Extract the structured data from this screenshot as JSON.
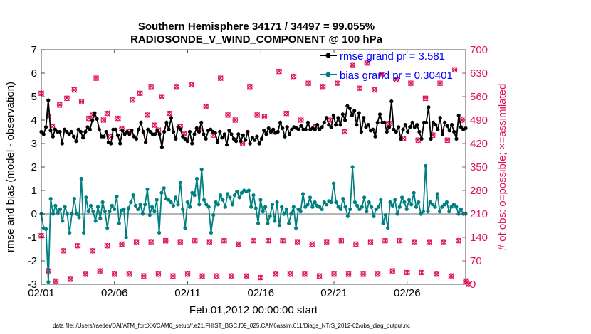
{
  "chart_data": {
    "type": "line",
    "title_line1": "Southern Hemisphere 34171 / 34497 = 99.055%",
    "title_line2": "RADIOSONDE_V_WIND_COMPONENT @ 100 hPa",
    "xlabel": "Feb.01,2012 00:00:00 start",
    "ylabel_left": "rmse and bias (model - observation)",
    "ylabel_right": "# of obs: o=possible; ×=assimilated",
    "footnote": "data file: /Users/raeder/DAI/ATM_forcXX/CAM6_setup/f.e21.FHIST_BGC.f09_025.CAM6assim.011/Diags_NTrS_2012-02/obs_diag_output.nc",
    "x_ticks": [
      "02/01",
      "02/06",
      "02/11",
      "02/16",
      "02/21",
      "02/26"
    ],
    "x_tick_days": [
      0,
      5,
      10,
      15,
      20,
      25
    ],
    "xlim_days": [
      0,
      29
    ],
    "ylim_left": [
      -3,
      7
    ],
    "y_ticks_left": [
      "-3",
      "-2",
      "-1",
      "0",
      "1",
      "2",
      "3",
      "4",
      "5",
      "6",
      "7"
    ],
    "ylim_right": [
      0,
      700
    ],
    "y_ticks_right": [
      "0",
      "70",
      "140",
      "210",
      "280",
      "350",
      "420",
      "490",
      "560",
      "630",
      "700"
    ],
    "colors": {
      "rmse": "#000000",
      "bias": "#008080",
      "obs": "#e0105a",
      "zero_line": "#b4b4b4",
      "legend_text": "#0000ff"
    },
    "legend": [
      {
        "name": "rmse",
        "label": "rmse grand pr = 3.581"
      },
      {
        "name": "bias",
        "label": "bias grand pr = 0.30401"
      }
    ],
    "series_rmse": [
      3.5,
      3.4,
      3.7,
      4.85,
      3.55,
      3.3,
      3.6,
      3.5,
      3.5,
      3.0,
      3.6,
      3.5,
      3.4,
      3.5,
      3.3,
      3.1,
      3.6,
      3.5,
      3.25,
      3.5,
      3.7,
      3.6,
      4.0,
      4.3,
      4.05,
      3.6,
      3.3,
      3.3,
      3.5,
      3.05,
      3.0,
      3.6,
      3.6,
      3.35,
      3.0,
      3.55,
      3.4,
      3.5,
      3.4,
      3.55,
      3.3,
      3.2,
      3.6,
      3.9,
      3.5,
      3.05,
      3.6,
      3.5,
      3.4,
      3.4,
      3.55,
      3.4,
      2.85,
      3.5,
      3.9,
      3.6,
      4.1,
      3.5,
      3.2,
      3.7,
      3.6,
      3.3,
      3.2,
      3.1,
      3.5,
      3.0,
      3.4,
      3.65,
      3.5,
      3.9,
      3.4,
      3.2,
      3.55,
      3.6,
      3.5,
      3.45,
      3.05,
      3.5,
      3.25,
      3.4,
      2.95,
      3.55,
      3.4,
      3.2,
      3.1,
      3.4,
      3.1,
      3.35,
      3.15,
      3.5,
      3.0,
      3.25,
      3.15,
      3.3,
      3.0,
      3.2,
      3.55,
      3.4,
      3.65,
      3.5,
      3.6,
      3.45,
      3.5,
      3.9,
      3.65,
      3.3,
      3.7,
      3.4,
      3.6,
      3.7,
      3.65,
      3.6,
      3.75,
      3.6,
      3.6,
      3.9,
      3.6,
      3.65,
      3.6,
      3.8,
      3.6,
      3.7,
      3.9,
      4.1,
      3.8,
      3.7,
      4.2,
      3.8,
      4.1,
      3.8,
      4.25,
      4.0,
      4.6,
      4.5,
      4.2,
      4.4,
      3.8,
      4.3,
      3.5,
      4.1,
      3.7,
      3.8,
      3.55,
      3.6,
      3.3,
      3.9,
      4.25,
      3.9,
      3.9,
      3.5,
      3.7,
      4.8,
      3.6,
      3.5,
      3.7,
      3.2,
      3.6,
      3.8,
      3.5,
      3.7,
      3.9,
      3.7,
      3.8,
      3.5,
      3.2,
      3.9,
      3.9,
      4.55,
      3.2,
      3.9,
      3.8,
      3.6,
      4.1,
      3.4,
      3.9,
      3.75,
      3.55,
      3.8,
      3.5,
      3.2,
      4.2,
      3.7,
      3.6,
      3.65
    ],
    "series_bias": [
      0.0,
      -0.6,
      -0.65,
      -2.9,
      0.65,
      0.0,
      0.35,
      0.05,
      0.2,
      -0.3,
      0.3,
      0.0,
      -0.8,
      0.0,
      0.65,
      0.0,
      -0.15,
      1.5,
      -0.8,
      0.7,
      0.1,
      0.35,
      0.1,
      -0.3,
      0.3,
      -0.2,
      0.5,
      0.1,
      -0.6,
      0.1,
      0.35,
      0.2,
      0.75,
      -0.4,
      0.15,
      0.2,
      -1.0,
      0.25,
      0.5,
      0.8,
      0.35,
      0.2,
      0.4,
      0.0,
      0.4,
      1.05,
      -0.05,
      0.3,
      0.1,
      0.6,
      -0.8,
      0.9,
      1.1,
      0.65,
      0.6,
      0.5,
      0.35,
      0.7,
      0.4,
      1.35,
      0.2,
      -0.6,
      0.5,
      0.3,
      0.9,
      0.8,
      1.5,
      0.4,
      1.9,
      0.6,
      0.4,
      0.3,
      -0.8,
      -0.05,
      0.5,
      0.4,
      0.8,
      0.6,
      0.3,
      0.85,
      0.7,
      0.4,
      0.8,
      0.95,
      0.7,
      0.9,
      1.0,
      0.95,
      1.0,
      0.3,
      0.8,
      0.25,
      -0.4,
      0.6,
      0.1,
      0.3,
      -0.4,
      -0.1,
      0.4,
      -0.3,
      0.5,
      -0.5,
      0.3,
      0.0,
      0.2,
      -0.4,
      0.0,
      0.3,
      -0.6,
      0.2,
      0.1,
      0.85,
      0.3,
      0.4,
      0.7,
      0.3,
      0.5,
      0.35,
      0.3,
      0.2,
      0.5,
      0.4,
      0.55,
      0.5,
      1.3,
      0.5,
      0.3,
      0.2,
      0.65,
      0.3,
      -0.1,
      0.2,
      2.0,
      0.5,
      0.35,
      0.2,
      0.3,
      0.7,
      0.1,
      0.5,
      0.3,
      -0.1,
      0.2,
      0.3,
      0.6,
      -0.4,
      -0.05,
      -0.6,
      0.5,
      0.35,
      0.6,
      0.0,
      0.3,
      0.7,
      0.5,
      0.2,
      0.6,
      0.4,
      0.9,
      0.3,
      0.5,
      0.0,
      0.1,
      2.05,
      0.1,
      0.5,
      0.4,
      0.3,
      0.85,
      0.1,
      0.3,
      0.4,
      0.5,
      0.1,
      0.3,
      0.4,
      0.3,
      0.0,
      0.2,
      0.0,
      0.0
    ],
    "series_obs_possible_upper": [
      [
        0.0,
        570
      ],
      [
        0.5,
        500
      ],
      [
        0.75,
        470
      ],
      [
        1.25,
        535
      ],
      [
        1.75,
        555
      ],
      [
        2.25,
        580
      ],
      [
        2.75,
        545
      ],
      [
        3.25,
        495
      ],
      [
        3.5,
        505
      ],
      [
        3.75,
        615
      ],
      [
        4.25,
        490
      ],
      [
        4.5,
        510
      ],
      [
        4.75,
        440
      ],
      [
        5.25,
        495
      ],
      [
        5.5,
        465
      ],
      [
        6.0,
        455
      ],
      [
        6.25,
        550
      ],
      [
        6.75,
        570
      ],
      [
        7.25,
        505
      ],
      [
        7.5,
        590
      ],
      [
        7.75,
        475
      ],
      [
        8.0,
        460
      ],
      [
        8.25,
        560
      ],
      [
        8.75,
        510
      ],
      [
        9.25,
        590
      ],
      [
        9.5,
        470
      ],
      [
        9.75,
        450
      ],
      [
        10.25,
        595
      ],
      [
        10.75,
        465
      ],
      [
        11.25,
        530
      ],
      [
        11.75,
        445
      ],
      [
        12.25,
        615
      ],
      [
        12.75,
        505
      ],
      [
        13.25,
        490
      ],
      [
        13.75,
        420
      ],
      [
        14.25,
        590
      ],
      [
        14.75,
        505
      ],
      [
        15.25,
        500
      ],
      [
        15.75,
        455
      ],
      [
        16.25,
        635
      ],
      [
        16.75,
        510
      ],
      [
        17.25,
        620
      ],
      [
        17.75,
        490
      ],
      [
        18.25,
        600
      ],
      [
        18.75,
        470
      ],
      [
        19.25,
        590
      ],
      [
        19.75,
        490
      ],
      [
        20.25,
        600
      ],
      [
        20.75,
        455
      ],
      [
        21.25,
        655
      ],
      [
        21.75,
        585
      ],
      [
        22.25,
        660
      ],
      [
        22.75,
        580
      ],
      [
        23.25,
        625
      ],
      [
        23.75,
        480
      ],
      [
        24.25,
        610
      ],
      [
        24.75,
        435
      ],
      [
        25.25,
        600
      ],
      [
        25.75,
        430
      ],
      [
        26.25,
        555
      ],
      [
        26.75,
        445
      ],
      [
        27.25,
        600
      ],
      [
        27.75,
        430
      ],
      [
        28.25,
        640
      ],
      [
        28.75,
        490
      ]
    ],
    "series_obs_possible_lower": [
      [
        0.0,
        145
      ],
      [
        0.5,
        40
      ],
      [
        1.0,
        10
      ],
      [
        1.5,
        100
      ],
      [
        2.0,
        15
      ],
      [
        2.5,
        115
      ],
      [
        3.0,
        30
      ],
      [
        3.5,
        100
      ],
      [
        4.0,
        40
      ],
      [
        4.5,
        115
      ],
      [
        5.0,
        30
      ],
      [
        5.5,
        120
      ],
      [
        6.0,
        30
      ],
      [
        6.5,
        125
      ],
      [
        7.0,
        25
      ],
      [
        7.5,
        125
      ],
      [
        8.0,
        30
      ],
      [
        8.5,
        130
      ],
      [
        9.0,
        25
      ],
      [
        9.5,
        125
      ],
      [
        10.0,
        30
      ],
      [
        10.5,
        130
      ],
      [
        11.0,
        25
      ],
      [
        11.5,
        125
      ],
      [
        12.0,
        25
      ],
      [
        12.5,
        130
      ],
      [
        13.0,
        25
      ],
      [
        13.5,
        120
      ],
      [
        14.0,
        25
      ],
      [
        14.5,
        130
      ],
      [
        15.0,
        20
      ],
      [
        15.5,
        130
      ],
      [
        16.0,
        30
      ],
      [
        16.5,
        130
      ],
      [
        17.0,
        30
      ],
      [
        17.5,
        125
      ],
      [
        18.0,
        30
      ],
      [
        18.5,
        120
      ],
      [
        19.0,
        25
      ],
      [
        19.5,
        125
      ],
      [
        20.0,
        30
      ],
      [
        20.5,
        130
      ],
      [
        21.0,
        30
      ],
      [
        21.5,
        120
      ],
      [
        22.0,
        30
      ],
      [
        22.5,
        125
      ],
      [
        23.0,
        30
      ],
      [
        23.5,
        130
      ],
      [
        24.0,
        40
      ],
      [
        24.5,
        130
      ],
      [
        25.0,
        35
      ],
      [
        25.5,
        125
      ],
      [
        26.0,
        35
      ],
      [
        26.5,
        125
      ],
      [
        27.0,
        30
      ],
      [
        27.5,
        125
      ],
      [
        28.0,
        25
      ],
      [
        28.5,
        130
      ],
      [
        29.0,
        10
      ],
      [
        29.2,
        0
      ]
    ]
  }
}
